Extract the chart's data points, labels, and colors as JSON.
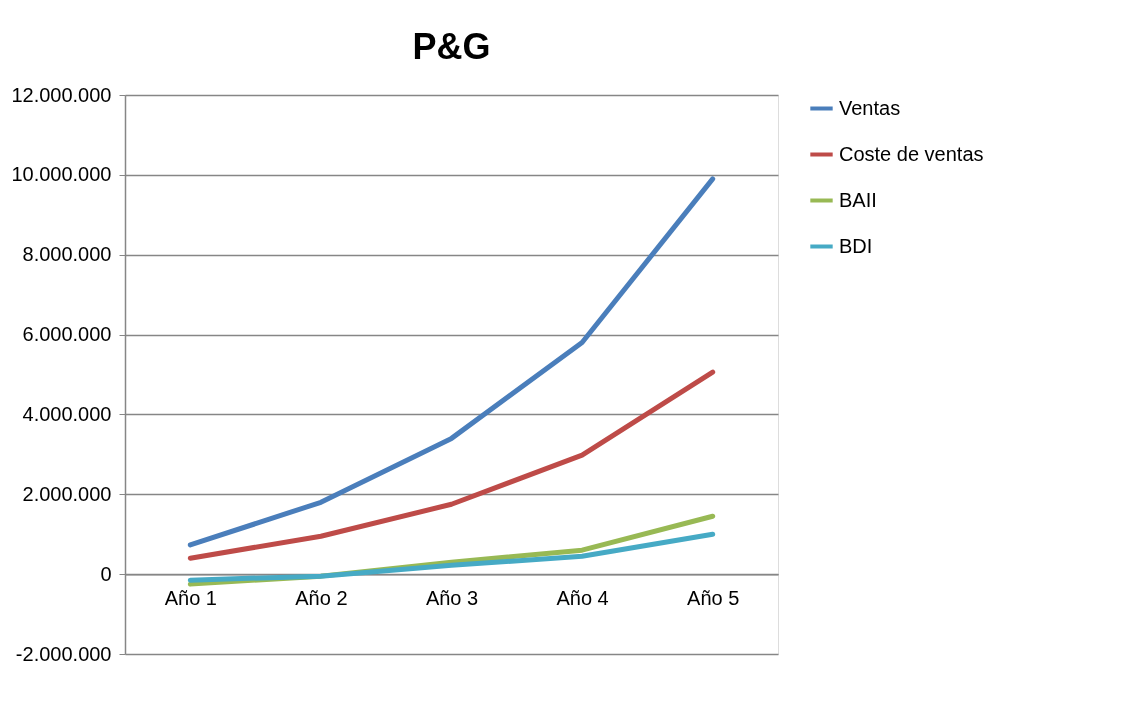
{
  "chart_data": {
    "type": "line",
    "title": "P&G",
    "categories": [
      "Año 1",
      "Año 2",
      "Año 3",
      "Año 4",
      "Año 5"
    ],
    "series": [
      {
        "name": "Ventas",
        "color": "#4a7ebb",
        "values": [
          730000,
          1800000,
          3400000,
          5800000,
          9900000
        ]
      },
      {
        "name": "Coste de ventas",
        "color": "#be4b48",
        "values": [
          400000,
          950000,
          1750000,
          2980000,
          5060000
        ]
      },
      {
        "name": "BAII",
        "color": "#98b954",
        "values": [
          -250000,
          -50000,
          300000,
          600000,
          1450000
        ]
      },
      {
        "name": "BDI",
        "color": "#46aac5",
        "values": [
          -150000,
          -50000,
          220000,
          450000,
          1000000
        ]
      }
    ],
    "ylim": [
      -2000000,
      12000000
    ],
    "yticks": [
      {
        "value": -2000000,
        "label": "-2.000.000"
      },
      0,
      {
        "value": 2000000,
        "label": "2.000.000"
      },
      {
        "value": 4000000,
        "label": "4.000.000"
      },
      {
        "value": 6000000,
        "label": "6.000.000"
      },
      {
        "value": 8000000,
        "label": "8.000.000"
      },
      {
        "value": 10000000,
        "label": "10.000.000"
      },
      {
        "value": 12000000,
        "label": "12.000.000"
      }
    ],
    "grid": "y",
    "legend": "right",
    "marker": "none",
    "line_style": "solid"
  }
}
